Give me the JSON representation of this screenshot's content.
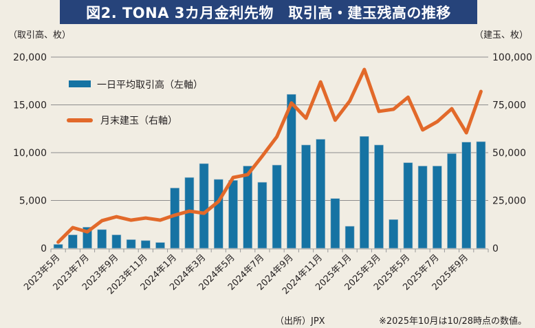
{
  "title": "図2. TONA 3カ月金利先物　取引高・建玉残高の推移",
  "footer": {
    "source": "（出所）JPX",
    "note": "※2025年10月は10/28時点の数値。"
  },
  "colors": {
    "title_bg": "#26437a",
    "bar": "#1673a3",
    "line": "#e2692a",
    "grid": "#8c8c8c",
    "background": "#f1ede3"
  },
  "chart_data": {
    "type": "bar",
    "title": "図2. TONA 3カ月金利先物　取引高・建玉残高の推移",
    "ylabel_left": "（取引高、枚）",
    "ylabel_right": "（建玉、枚）",
    "ylim_left": [
      0,
      20000
    ],
    "ylim_right": [
      0,
      100000
    ],
    "yticks_left": [
      "0",
      "5,000",
      "10,000",
      "15,000",
      "20,000"
    ],
    "yticks_right": [
      "0",
      "25,000",
      "50,000",
      "75,000",
      "100,000"
    ],
    "grid": true,
    "legend_position": "top-left",
    "categories": [
      "2023年5月",
      "2023年6月",
      "2023年7月",
      "2023年8月",
      "2023年9月",
      "2023年10月",
      "2023年11月",
      "2023年12月",
      "2024年1月",
      "2024年2月",
      "2024年3月",
      "2024年4月",
      "2024年5月",
      "2024年6月",
      "2024年7月",
      "2024年8月",
      "2024年9月",
      "2024年10月",
      "2024年11月",
      "2024年12月",
      "2025年1月",
      "2025年2月",
      "2025年3月",
      "2025年4月",
      "2025年5月",
      "2025年6月",
      "2025年7月",
      "2025年8月",
      "2025年9月",
      "2025年10月"
    ],
    "xtick_labels": [
      "2023年5月",
      "2023年7月",
      "2023年9月",
      "2023年11月",
      "2024年1月",
      "2024年3月",
      "2024年5月",
      "2024年7月",
      "2024年9月",
      "2024年11月",
      "2025年1月",
      "2025年3月",
      "2025年5月",
      "2025年7月",
      "2025年9月"
    ],
    "series": [
      {
        "name": "一日平均取引高（左軸）",
        "type": "bar",
        "axis": "left",
        "values": [
          400,
          1400,
          2200,
          1950,
          1400,
          900,
          800,
          600,
          6300,
          7400,
          8850,
          7200,
          7100,
          8600,
          6900,
          8700,
          16100,
          10800,
          11400,
          5200,
          2300,
          11700,
          10800,
          3000,
          8950,
          8600,
          8600,
          9900,
          11100,
          11150
        ]
      },
      {
        "name": "月末建玉（右軸）",
        "type": "line",
        "axis": "right",
        "values": [
          3200,
          10800,
          8600,
          14400,
          16500,
          14700,
          15800,
          14700,
          17300,
          19400,
          18300,
          24500,
          37000,
          38500,
          48200,
          58300,
          76000,
          68000,
          87000,
          67000,
          77000,
          93500,
          71600,
          72700,
          79000,
          61900,
          66200,
          73000,
          60400,
          82000
        ]
      }
    ]
  }
}
